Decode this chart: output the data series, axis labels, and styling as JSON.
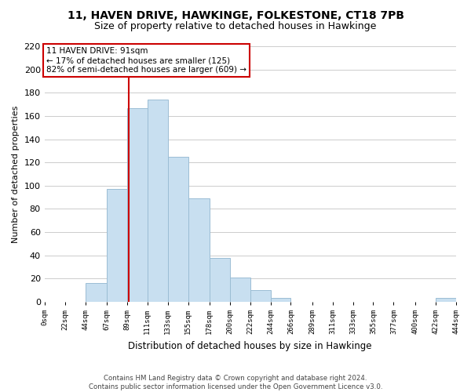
{
  "title": "11, HAVEN DRIVE, HAWKINGE, FOLKESTONE, CT18 7PB",
  "subtitle": "Size of property relative to detached houses in Hawkinge",
  "xlabel": "Distribution of detached houses by size in Hawkinge",
  "ylabel": "Number of detached properties",
  "footer_line1": "Contains HM Land Registry data © Crown copyright and database right 2024.",
  "footer_line2": "Contains public sector information licensed under the Open Government Licence v3.0.",
  "bar_edges": [
    0,
    22,
    44,
    67,
    89,
    111,
    133,
    155,
    178,
    200,
    222,
    244,
    266,
    289,
    311,
    333,
    355,
    377,
    400,
    422,
    444
  ],
  "bar_heights": [
    0,
    0,
    16,
    97,
    167,
    174,
    125,
    89,
    38,
    21,
    10,
    3,
    0,
    0,
    0,
    0,
    0,
    0,
    0,
    3
  ],
  "tick_labels": [
    "0sqm",
    "22sqm",
    "44sqm",
    "67sqm",
    "89sqm",
    "111sqm",
    "133sqm",
    "155sqm",
    "178sqm",
    "200sqm",
    "222sqm",
    "244sqm",
    "266sqm",
    "289sqm",
    "311sqm",
    "333sqm",
    "355sqm",
    "377sqm",
    "400sqm",
    "422sqm",
    "444sqm"
  ],
  "bar_color": "#c8dff0",
  "bar_edge_color": "#9bbdd4",
  "property_line_x": 91,
  "property_label": "11 HAVEN DRIVE: 91sqm",
  "annotation_line1": "← 17% of detached houses are smaller (125)",
  "annotation_line2": "82% of semi-detached houses are larger (609) →",
  "annotation_box_color": "#ffffff",
  "annotation_box_edge": "#cc0000",
  "property_line_color": "#cc0000",
  "ylim": [
    0,
    220
  ],
  "yticks": [
    0,
    20,
    40,
    60,
    80,
    100,
    120,
    140,
    160,
    180,
    200,
    220
  ],
  "background_color": "#ffffff",
  "grid_color": "#cccccc"
}
